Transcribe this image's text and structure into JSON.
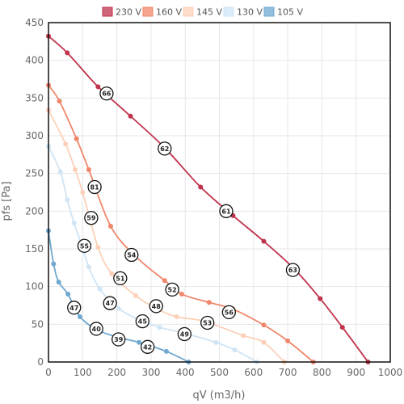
{
  "chart_data": {
    "type": "line",
    "xlabel": "qV (m3/h)",
    "ylabel": "pfs [Pa]",
    "xlim": [
      0,
      1000
    ],
    "ylim": [
      0,
      450
    ],
    "x_ticks": [
      0,
      100,
      200,
      300,
      400,
      500,
      600,
      700,
      800,
      900,
      1000
    ],
    "y_ticks": [
      0,
      50,
      100,
      150,
      200,
      250,
      300,
      350,
      400,
      450
    ],
    "grid": true,
    "legend_position": "top",
    "series": [
      {
        "name": "230 V",
        "color": "#c0334d",
        "points": [
          [
            0,
            432
          ],
          [
            55,
            410
          ],
          [
            145,
            365
          ],
          [
            240,
            326
          ],
          [
            340,
            284
          ],
          [
            445,
            232
          ],
          [
            540,
            194
          ],
          [
            630,
            160
          ],
          [
            720,
            123
          ],
          [
            795,
            84
          ],
          [
            860,
            46
          ],
          [
            935,
            0
          ]
        ],
        "annotations": [
          {
            "x": 170,
            "y": 356,
            "label": "66"
          },
          {
            "x": 340,
            "y": 283,
            "label": "62"
          },
          {
            "x": 520,
            "y": 200,
            "label": "61"
          },
          {
            "x": 715,
            "y": 122,
            "label": "63"
          }
        ]
      },
      {
        "name": "160 V",
        "color": "#f0866a",
        "points": [
          [
            0,
            367
          ],
          [
            32,
            346
          ],
          [
            82,
            296
          ],
          [
            118,
            255
          ],
          [
            182,
            180
          ],
          [
            255,
            140
          ],
          [
            340,
            108
          ],
          [
            390,
            90
          ],
          [
            470,
            79
          ],
          [
            540,
            70
          ],
          [
            630,
            49
          ],
          [
            700,
            28
          ],
          [
            775,
            0
          ]
        ],
        "annotations": [
          {
            "x": 135,
            "y": 232,
            "label": "81"
          },
          {
            "x": 243,
            "y": 142,
            "label": "54"
          },
          {
            "x": 362,
            "y": 96,
            "label": "52"
          },
          {
            "x": 528,
            "y": 66,
            "label": "56"
          }
        ]
      },
      {
        "name": "145 V",
        "color": "#fcd0b8",
        "points": [
          [
            0,
            334
          ],
          [
            50,
            289
          ],
          [
            78,
            255
          ],
          [
            100,
            225
          ],
          [
            145,
            152
          ],
          [
            185,
            117
          ],
          [
            255,
            88
          ],
          [
            320,
            70
          ],
          [
            375,
            60
          ],
          [
            455,
            54
          ],
          [
            570,
            35
          ],
          [
            630,
            26
          ],
          [
            690,
            0
          ]
        ],
        "annotations": [
          {
            "x": 125,
            "y": 191,
            "label": "59"
          },
          {
            "x": 210,
            "y": 111,
            "label": "51"
          },
          {
            "x": 315,
            "y": 74,
            "label": "48"
          },
          {
            "x": 465,
            "y": 52,
            "label": "53"
          }
        ]
      },
      {
        "name": "130 V",
        "color": "#cfe4f4",
        "points": [
          [
            0,
            286
          ],
          [
            35,
            252
          ],
          [
            55,
            215
          ],
          [
            75,
            184
          ],
          [
            95,
            158
          ],
          [
            118,
            126
          ],
          [
            150,
            97
          ],
          [
            205,
            71
          ],
          [
            270,
            55
          ],
          [
            325,
            46
          ],
          [
            390,
            39
          ],
          [
            490,
            26
          ],
          [
            545,
            16
          ],
          [
            610,
            0
          ]
        ],
        "annotations": [
          {
            "x": 105,
            "y": 154,
            "label": "55"
          },
          {
            "x": 180,
            "y": 78,
            "label": "47"
          },
          {
            "x": 275,
            "y": 54,
            "label": "45"
          },
          {
            "x": 398,
            "y": 37,
            "label": "49"
          }
        ]
      },
      {
        "name": "105 V",
        "color": "#6fa8d1",
        "points": [
          [
            0,
            174
          ],
          [
            15,
            130
          ],
          [
            30,
            106
          ],
          [
            57,
            90
          ],
          [
            92,
            60
          ],
          [
            145,
            42
          ],
          [
            210,
            32
          ],
          [
            265,
            26
          ],
          [
            345,
            14
          ],
          [
            410,
            0
          ]
        ],
        "annotations": [
          {
            "x": 75,
            "y": 72,
            "label": "47"
          },
          {
            "x": 140,
            "y": 44,
            "label": "40"
          },
          {
            "x": 205,
            "y": 30,
            "label": "39"
          },
          {
            "x": 290,
            "y": 20,
            "label": "42"
          }
        ]
      }
    ]
  }
}
